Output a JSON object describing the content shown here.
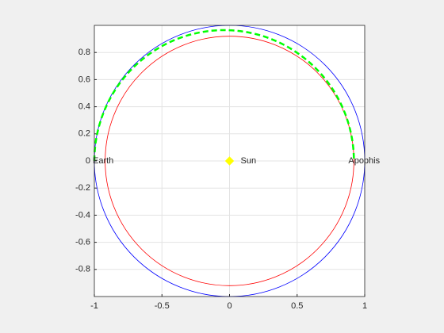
{
  "chart_data": {
    "type": "orbit",
    "xlim": [
      -1,
      1
    ],
    "ylim": [
      -1,
      1
    ],
    "xticks": [
      -1,
      -0.5,
      0,
      0.5,
      1
    ],
    "yticks": [
      -0.8,
      -0.6,
      -0.4,
      -0.2,
      0,
      0.2,
      0.4,
      0.6,
      0.8
    ],
    "grid": true,
    "circles": [
      {
        "r": 1,
        "color": "#0000ff"
      },
      {
        "r": 0.92,
        "color": "#ff0000"
      }
    ],
    "arc": {
      "cx": -0.04,
      "rx": 0.96,
      "ry": 0.965,
      "color": "#00ff00",
      "dashed": true
    },
    "points": [
      {
        "label": "Earth",
        "x": -1,
        "y": 0
      },
      {
        "label": "Sun",
        "x": 0,
        "y": 0,
        "color": "#ffff00",
        "marker": "diamond"
      },
      {
        "label": "Apophis",
        "x": 0.92,
        "y": 0
      }
    ]
  }
}
